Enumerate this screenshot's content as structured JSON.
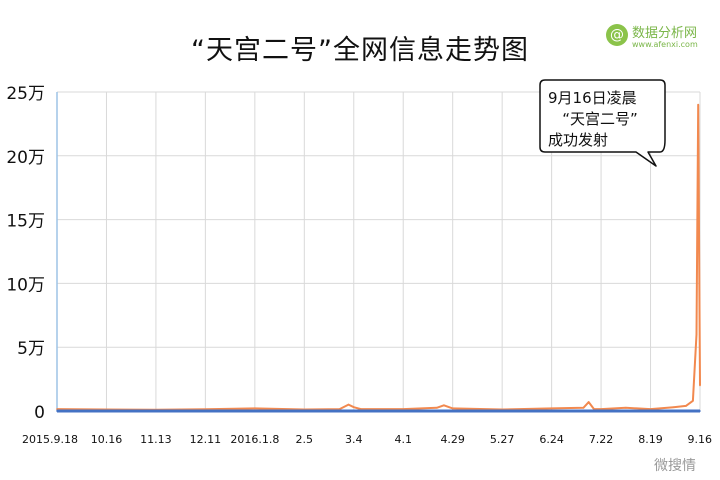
{
  "page": {
    "title": "“天宫二号”全网信息走势图",
    "logo": {
      "badge": "@",
      "name": "数据分析网",
      "url": "www.afenxi.com"
    },
    "watermark": "微搜情"
  },
  "chart_data": {
    "type": "line",
    "title": "“天宫二号”全网信息走势图",
    "xlabel": "",
    "ylabel": "",
    "x_tick_labels": [
      "2015.9.18",
      "10.16",
      "11.13",
      "12.11",
      "2016.1.8",
      "2.5",
      "3.4",
      "4.1",
      "4.29",
      "5.27",
      "6.24",
      "7.22",
      "8.19",
      "9.16"
    ],
    "y_tick_labels": [
      "0",
      "5万",
      "10万",
      "15万",
      "20万",
      "25万"
    ],
    "ylim": [
      0,
      250000
    ],
    "xlim": [
      "2015-09-18",
      "2016-09-16"
    ],
    "grid": true,
    "series": [
      {
        "color": "#f2894f",
        "points": [
          [
            "2015-09-18",
            1500
          ],
          [
            "2015-10-16",
            1200
          ],
          [
            "2015-11-13",
            1000
          ],
          [
            "2015-12-11",
            1300
          ],
          [
            "2016-01-08",
            2000
          ],
          [
            "2016-02-05",
            1200
          ],
          [
            "2016-02-25",
            1500
          ],
          [
            "2016-03-01",
            5000
          ],
          [
            "2016-03-04",
            3000
          ],
          [
            "2016-03-08",
            1500
          ],
          [
            "2016-04-01",
            1500
          ],
          [
            "2016-04-20",
            2500
          ],
          [
            "2016-04-24",
            4500
          ],
          [
            "2016-04-29",
            2000
          ],
          [
            "2016-05-27",
            1200
          ],
          [
            "2016-06-24",
            2000
          ],
          [
            "2016-07-12",
            2500
          ],
          [
            "2016-07-15",
            7000
          ],
          [
            "2016-07-18",
            1500
          ],
          [
            "2016-07-22",
            1500
          ],
          [
            "2016-08-05",
            2500
          ],
          [
            "2016-08-19",
            1500
          ],
          [
            "2016-09-01",
            3000
          ],
          [
            "2016-09-08",
            4000
          ],
          [
            "2016-09-12",
            8000
          ],
          [
            "2016-09-14",
            60000
          ],
          [
            "2016-09-15",
            240000
          ],
          [
            "2016-09-16",
            20000
          ]
        ]
      },
      {
        "color": "#4472c4",
        "points": [
          [
            "2015-09-18",
            0
          ],
          [
            "2016-09-16",
            0
          ]
        ]
      }
    ],
    "annotation": {
      "lines": [
        "9月16日凌晨",
        "“天宫二号”",
        "成功发射"
      ]
    }
  }
}
